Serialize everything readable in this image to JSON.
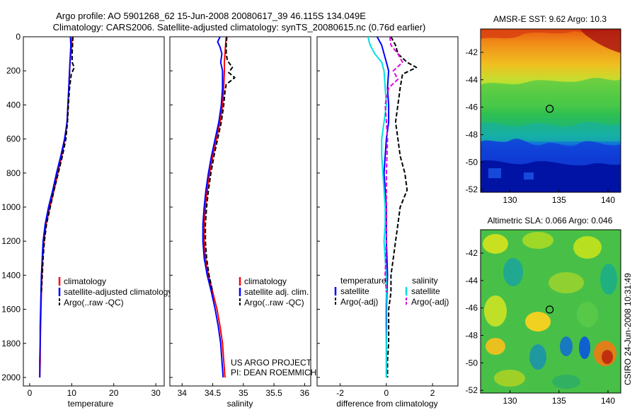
{
  "header": {
    "title_line1": "Argo profile: AO 5901268_62 15-Jun-2008 20080617_39 46.115S 134.049E",
    "title_line2": "Climatology: CARS2006. Satellite-adjusted climatology: synTS_20080615.nc (0.76d earlier)"
  },
  "footer": {
    "project": "US ARGO PROJECT",
    "pi": "PI: DEAN ROEMMICH",
    "stamp": "CSIRO 24-Jun-2008 10:31:49"
  },
  "colors": {
    "climatology": "#ff0000",
    "satellite": "#0000ff",
    "argo": "#000000",
    "sal_satellite": "#00e0e0",
    "sal_argo": "#e000e0"
  },
  "chart_data": [
    {
      "type": "line",
      "id": "temperature",
      "xlabel": "temperature",
      "ylabel": "",
      "xlim": [
        -1.5,
        32
      ],
      "ylim": [
        2050,
        0
      ],
      "xticks": [
        0,
        10,
        20,
        30
      ],
      "yticks": [
        0,
        200,
        400,
        600,
        800,
        1000,
        1200,
        1400,
        1600,
        1800,
        2000
      ],
      "legend": [
        "climatology",
        "satellite-adjusted climatology",
        "Argo(..raw -QC)"
      ],
      "series": [
        {
          "name": "climatology",
          "color": "#ff0000",
          "style": "solid",
          "depth": [
            0,
            50,
            100,
            150,
            200,
            300,
            400,
            500,
            600,
            700,
            800,
            900,
            1000,
            1100,
            1200,
            1300,
            1400,
            1500,
            1600,
            1700,
            1800,
            1900,
            2000
          ],
          "x": [
            10.1,
            10.0,
            9.8,
            9.6,
            9.5,
            9.3,
            9.1,
            8.9,
            8.4,
            7.6,
            6.7,
            5.8,
            4.8,
            3.9,
            3.4,
            3.1,
            2.9,
            2.8,
            2.7,
            2.6,
            2.5,
            2.5,
            2.4
          ]
        },
        {
          "name": "satellite-adjusted climatology",
          "color": "#0000ff",
          "style": "solid",
          "depth": [
            0,
            50,
            100,
            150,
            200,
            300,
            400,
            500,
            600,
            700,
            800,
            900,
            1000,
            1100,
            1200,
            1300,
            1400,
            1500,
            1600,
            1700,
            1800,
            1900,
            2000
          ],
          "x": [
            9.7,
            9.8,
            9.7,
            9.6,
            9.5,
            9.3,
            9.1,
            8.9,
            8.3,
            7.4,
            6.4,
            5.5,
            4.5,
            3.7,
            3.2,
            3.0,
            2.8,
            2.7,
            2.6,
            2.5,
            2.5,
            2.4,
            2.4
          ]
        },
        {
          "name": "Argo(..raw -QC)",
          "color": "#000000",
          "style": "dash",
          "depth": [
            0,
            50,
            100,
            150,
            180,
            220,
            300,
            400,
            500,
            600,
            700,
            800,
            900,
            1000,
            1100,
            1200,
            1300,
            1400,
            1500
          ],
          "x": [
            10.3,
            10.2,
            10.1,
            10.1,
            10.6,
            9.9,
            9.5,
            9.2,
            9.0,
            8.6,
            7.8,
            6.8,
            5.8,
            4.9,
            4.0,
            3.5,
            3.2,
            3.0,
            2.8
          ]
        }
      ]
    },
    {
      "type": "line",
      "id": "salinity",
      "xlabel": "salinity",
      "ylabel": "",
      "xlim": [
        33.8,
        36.1
      ],
      "ylim": [
        2050,
        0
      ],
      "xticks": [
        34,
        34.5,
        35,
        35.5,
        36
      ],
      "yticks": [
        0,
        200,
        400,
        600,
        800,
        1000,
        1200,
        1400,
        1600,
        1800,
        2000
      ],
      "legend": [
        "climatology",
        "satellite adj. clim.",
        "Argo(..raw -QC)"
      ],
      "series": [
        {
          "name": "climatology",
          "color": "#ff0000",
          "style": "solid",
          "depth": [
            0,
            50,
            100,
            150,
            200,
            300,
            400,
            500,
            600,
            700,
            800,
            900,
            1000,
            1100,
            1200,
            1300,
            1400,
            1500,
            1600,
            1700,
            1800,
            1900,
            2000
          ],
          "x": [
            34.72,
            34.71,
            34.7,
            34.69,
            34.69,
            34.68,
            34.66,
            34.62,
            34.56,
            34.5,
            34.45,
            34.41,
            34.38,
            34.36,
            34.36,
            34.38,
            34.43,
            34.5,
            34.57,
            34.62,
            34.66,
            34.68,
            34.7
          ]
        },
        {
          "name": "satellite adj. clim.",
          "color": "#0000ff",
          "style": "solid",
          "depth": [
            0,
            30,
            60,
            100,
            150,
            200,
            300,
            400,
            500,
            600,
            700,
            800,
            900,
            1000,
            1100,
            1200,
            1300,
            1400,
            1500,
            1600,
            1700,
            1800,
            1900,
            2000
          ],
          "x": [
            34.62,
            34.58,
            34.62,
            34.65,
            34.63,
            34.66,
            34.66,
            34.64,
            34.6,
            34.54,
            34.48,
            34.43,
            34.39,
            34.36,
            34.34,
            34.34,
            34.36,
            34.41,
            34.48,
            34.54,
            34.59,
            34.63,
            34.65,
            34.67
          ]
        },
        {
          "name": "Argo(..raw -QC)",
          "color": "#000000",
          "style": "dash",
          "depth": [
            0,
            50,
            100,
            140,
            180,
            210,
            240,
            280,
            320,
            400,
            500,
            600,
            700,
            800,
            900,
            1000,
            1100,
            1200,
            1300,
            1400,
            1500
          ],
          "x": [
            34.73,
            34.72,
            34.72,
            34.74,
            34.82,
            34.76,
            34.86,
            34.72,
            34.7,
            34.68,
            34.64,
            34.58,
            34.52,
            34.47,
            34.43,
            34.4,
            34.38,
            34.38,
            34.4,
            34.44,
            34.5
          ]
        }
      ]
    },
    {
      "type": "line",
      "id": "difference",
      "xlabel": "difference from climatology",
      "ylabel": "",
      "xlim": [
        -3,
        3.1
      ],
      "ylim": [
        2050,
        0
      ],
      "xticks": [
        -2,
        0,
        2
      ],
      "yticks": [
        0,
        200,
        400,
        600,
        800,
        1000,
        1200,
        1400,
        1600,
        1800,
        2000
      ],
      "legend_groups": [
        {
          "title": "temperature",
          "items": [
            "satellite",
            "Argo(-adj)"
          ]
        },
        {
          "title": "salinity",
          "items": [
            "satellite",
            "Argo(-adj)"
          ]
        }
      ],
      "series": [
        {
          "name": "temperature satellite",
          "color": "#0000ff",
          "style": "solid",
          "depth": [
            0,
            50,
            100,
            150,
            200,
            300,
            400,
            500,
            600,
            700,
            800,
            900,
            1000,
            1200,
            1400,
            1600,
            1800,
            2000
          ],
          "x": [
            -0.4,
            -0.2,
            -0.1,
            0.0,
            0.1,
            0.05,
            0.1,
            0.1,
            0.0,
            -0.05,
            -0.1,
            -0.05,
            0.0,
            0.0,
            0.05,
            0.0,
            0.0,
            0.0
          ]
        },
        {
          "name": "temperature Argo(-adj)",
          "color": "#000000",
          "style": "dash",
          "depth": [
            0,
            50,
            100,
            150,
            180,
            220,
            300,
            400,
            500,
            600,
            700,
            800,
            900,
            1000,
            1100,
            1200,
            1300,
            1400,
            1500,
            1600,
            1700,
            1800,
            1900,
            2000
          ],
          "x": [
            0.2,
            0.4,
            0.5,
            0.9,
            1.3,
            0.7,
            0.6,
            0.5,
            0.4,
            0.5,
            0.6,
            0.8,
            0.9,
            0.6,
            0.5,
            0.4,
            0.3,
            0.2,
            0.2,
            0.1,
            0.1,
            0.1,
            0.05,
            0.05
          ]
        },
        {
          "name": "salinity satellite",
          "color": "#00e0e0",
          "style": "solid",
          "depth": [
            0,
            50,
            100,
            150,
            200,
            300,
            400,
            500,
            600,
            700,
            800,
            900,
            1000,
            1100,
            1200,
            1300,
            1400,
            1500,
            1600,
            1700,
            1800,
            1900,
            2000
          ],
          "x": [
            -0.8,
            -0.7,
            -0.5,
            -0.2,
            -0.1,
            -0.05,
            0.0,
            -0.1,
            -0.2,
            -0.2,
            -0.15,
            -0.1,
            -0.05,
            -0.05,
            -0.1,
            -0.05,
            0.0,
            0.0,
            -0.02,
            -0.02,
            0.0,
            0.0,
            0.0
          ]
        },
        {
          "name": "salinity Argo(-adj)",
          "color": "#e000e0",
          "style": "dash",
          "depth": [
            0,
            50,
            100,
            150,
            200,
            250,
            300,
            400,
            500,
            600,
            800,
            1000,
            1200,
            1400,
            1500
          ],
          "x": [
            0.15,
            0.2,
            0.5,
            0.7,
            0.3,
            0.5,
            0.1,
            -0.05,
            0.0,
            0.05,
            0.0,
            0.0,
            0.0,
            -0.05,
            0.0
          ]
        }
      ]
    },
    {
      "type": "heatmap",
      "id": "sst_map",
      "title": "AMSR-E SST: 9.62 Argo: 10.3",
      "xlim": [
        127,
        141.3
      ],
      "ylim": [
        -52.2,
        -40.3
      ],
      "xticks": [
        130,
        135,
        140
      ],
      "yticks": [
        -42,
        -44,
        -46,
        -48,
        -50,
        -52
      ],
      "marker": {
        "lon": 134.049,
        "lat": -46.115
      },
      "colormap": "jet"
    },
    {
      "type": "heatmap",
      "id": "sla_map",
      "title": "Altimetric SLA: 0.066 Argo: 0.046",
      "xlim": [
        127,
        141.3
      ],
      "ylim": [
        -52.2,
        -40.3
      ],
      "xticks": [
        130,
        135,
        140
      ],
      "yticks": [
        -42,
        -44,
        -46,
        -48,
        -50,
        -52
      ],
      "marker": {
        "lon": 134.049,
        "lat": -46.115
      },
      "colormap": "jet"
    }
  ]
}
